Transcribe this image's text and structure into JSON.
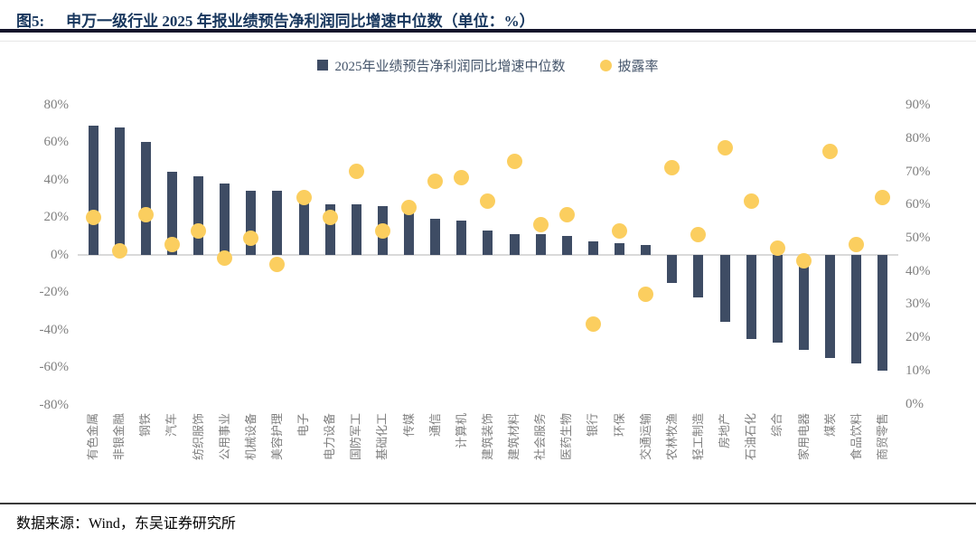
{
  "figure": {
    "label": "图5:",
    "title": "申万一级行业 2025 年报业绩预告净利润同比增速中位数（单位：%）",
    "source": "数据来源：Wind，东吴证券研究所"
  },
  "chart_data": {
    "type": "bar",
    "subtype": "bar+scatter dual-axis combo",
    "title": "申万一级行业2025年报业绩预告净利润同比增速中位数",
    "categories": [
      "有色金属",
      "非银金融",
      "钢铁",
      "汽车",
      "纺织服饰",
      "公用事业",
      "机械设备",
      "美容护理",
      "电子",
      "电力设备",
      "国防军工",
      "基础化工",
      "传媒",
      "通信",
      "计算机",
      "建筑装饰",
      "建筑材料",
      "社会服务",
      "医药生物",
      "银行",
      "环保",
      "交通运输",
      "农林牧渔",
      "轻工制造",
      "房地产",
      "石油石化",
      "综合",
      "家用电器",
      "煤炭",
      "食品饮料",
      "商贸零售"
    ],
    "series": [
      {
        "name": "2025年业绩预告净利润同比增速中位数",
        "type": "bar",
        "axis": "left",
        "unit": "%",
        "values": [
          69,
          68,
          60,
          44,
          42,
          38,
          34,
          34,
          28,
          27,
          27,
          26,
          23,
          19,
          18,
          13,
          11,
          11,
          10,
          7,
          6,
          5,
          -15,
          -23,
          -36,
          -45,
          -47,
          -51,
          -55,
          -58,
          -62
        ]
      },
      {
        "name": "披露率",
        "type": "scatter",
        "axis": "right",
        "unit": "%",
        "values": [
          56,
          46,
          57,
          48,
          52,
          44,
          50,
          42,
          62,
          56,
          70,
          52,
          59,
          67,
          68,
          61,
          73,
          54,
          57,
          24,
          52,
          33,
          71,
          51,
          77,
          61,
          47,
          43,
          76,
          48,
          62
        ]
      }
    ],
    "left_axis": {
      "ticks": [
        "80%",
        "60%",
        "40%",
        "20%",
        "0%",
        "-20%",
        "-40%",
        "-60%",
        "-80%"
      ],
      "min": -80,
      "max": 80
    },
    "right_axis": {
      "ticks": [
        "90%",
        "80%",
        "70%",
        "60%",
        "50%",
        "40%",
        "30%",
        "20%",
        "10%",
        "0%"
      ],
      "min": 0,
      "max": 90
    },
    "legend_position": "top-center",
    "grid": false,
    "colors": {
      "bar": "#3E4C64",
      "dot": "#FBCE5F"
    }
  }
}
